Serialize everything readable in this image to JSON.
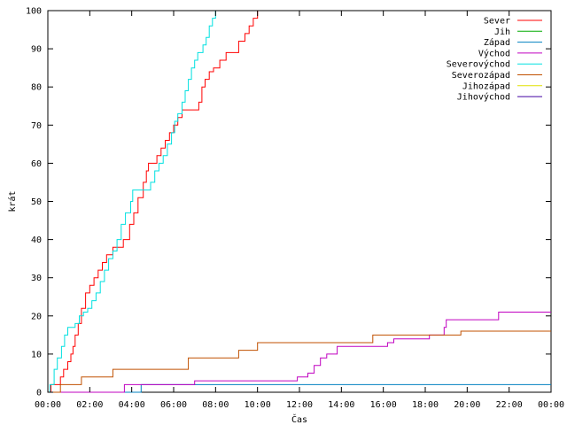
{
  "chart_data": {
    "type": "line",
    "title": "",
    "xlabel": "Čas",
    "ylabel": "krát",
    "ylim": [
      0,
      100
    ],
    "xlim": [
      0,
      24
    ],
    "x_unit": "hours since 00:00",
    "xticks": [
      0,
      2,
      4,
      6,
      8,
      10,
      12,
      14,
      16,
      18,
      20,
      22,
      24
    ],
    "xtick_labels": [
      "00:00",
      "02:00",
      "04:00",
      "06:00",
      "08:00",
      "10:00",
      "12:00",
      "14:00",
      "16:00",
      "18:00",
      "20:00",
      "22:00",
      "00:00"
    ],
    "yticks": [
      0,
      10,
      20,
      30,
      40,
      50,
      60,
      70,
      80,
      90,
      100
    ],
    "ytick_labels": [
      "0",
      "10",
      "20",
      "30",
      "40",
      "50",
      "60",
      "70",
      "80",
      "90",
      "100"
    ],
    "grid": false,
    "legend_position": "top-right",
    "series": [
      {
        "name": "Sever",
        "color": "#ff0000",
        "points": [
          [
            0,
            0
          ],
          [
            0.1,
            0
          ],
          [
            0.15,
            2
          ],
          [
            0.55,
            2
          ],
          [
            0.6,
            4
          ],
          [
            0.75,
            6
          ],
          [
            0.95,
            8
          ],
          [
            1.1,
            10
          ],
          [
            1.2,
            12
          ],
          [
            1.3,
            15
          ],
          [
            1.45,
            18
          ],
          [
            1.6,
            22
          ],
          [
            1.8,
            26
          ],
          [
            2.0,
            28
          ],
          [
            2.2,
            30
          ],
          [
            2.4,
            32
          ],
          [
            2.6,
            34
          ],
          [
            2.8,
            36
          ],
          [
            3.1,
            38
          ],
          [
            3.6,
            40
          ],
          [
            3.9,
            44
          ],
          [
            4.1,
            47
          ],
          [
            4.3,
            51
          ],
          [
            4.55,
            55
          ],
          [
            4.7,
            58
          ],
          [
            4.8,
            60
          ],
          [
            5.2,
            62
          ],
          [
            5.4,
            64
          ],
          [
            5.6,
            66
          ],
          [
            5.8,
            68
          ],
          [
            6.0,
            70
          ],
          [
            6.2,
            72
          ],
          [
            6.4,
            74
          ],
          [
            7.2,
            76
          ],
          [
            7.35,
            80
          ],
          [
            7.5,
            82
          ],
          [
            7.7,
            84
          ],
          [
            7.9,
            85
          ],
          [
            8.2,
            87
          ],
          [
            8.5,
            89
          ],
          [
            9.1,
            92
          ],
          [
            9.4,
            94
          ],
          [
            9.6,
            96
          ],
          [
            9.8,
            98
          ],
          [
            10.0,
            100
          ]
        ]
      },
      {
        "name": "Jih",
        "color": "#00aa00",
        "points": []
      },
      {
        "name": "Západ",
        "color": "#0080c0",
        "points": [
          [
            0,
            0
          ],
          [
            4.4,
            0
          ],
          [
            4.45,
            2
          ],
          [
            24,
            2
          ]
        ]
      },
      {
        "name": "Východ",
        "color": "#c000c0",
        "points": [
          [
            0,
            0
          ],
          [
            3.6,
            0
          ],
          [
            3.65,
            2
          ],
          [
            6.9,
            2
          ],
          [
            7.0,
            3
          ],
          [
            11.8,
            3
          ],
          [
            11.9,
            4
          ],
          [
            12.4,
            5
          ],
          [
            12.7,
            7
          ],
          [
            13.0,
            9
          ],
          [
            13.3,
            10
          ],
          [
            13.8,
            12
          ],
          [
            16.2,
            13
          ],
          [
            16.5,
            14
          ],
          [
            18.2,
            15
          ],
          [
            18.9,
            17
          ],
          [
            19.0,
            19
          ],
          [
            21.5,
            21
          ],
          [
            24,
            21
          ]
        ]
      },
      {
        "name": "Severovýchod",
        "color": "#00e0e0",
        "points": [
          [
            0,
            0
          ],
          [
            0.1,
            2
          ],
          [
            0.3,
            6
          ],
          [
            0.45,
            9
          ],
          [
            0.65,
            12
          ],
          [
            0.8,
            15
          ],
          [
            0.95,
            17
          ],
          [
            1.3,
            18
          ],
          [
            1.5,
            20
          ],
          [
            1.7,
            21
          ],
          [
            1.9,
            22
          ],
          [
            2.1,
            24
          ],
          [
            2.3,
            26
          ],
          [
            2.5,
            29
          ],
          [
            2.7,
            32
          ],
          [
            2.9,
            35
          ],
          [
            3.1,
            37
          ],
          [
            3.3,
            40
          ],
          [
            3.5,
            44
          ],
          [
            3.7,
            47
          ],
          [
            3.95,
            50
          ],
          [
            4.05,
            53
          ],
          [
            4.8,
            53
          ],
          [
            4.9,
            55
          ],
          [
            5.1,
            58
          ],
          [
            5.3,
            60
          ],
          [
            5.5,
            62
          ],
          [
            5.7,
            65
          ],
          [
            5.9,
            68
          ],
          [
            6.05,
            71
          ],
          [
            6.2,
            73
          ],
          [
            6.4,
            76
          ],
          [
            6.55,
            79
          ],
          [
            6.7,
            82
          ],
          [
            6.85,
            85
          ],
          [
            7.0,
            87
          ],
          [
            7.15,
            89
          ],
          [
            7.4,
            91
          ],
          [
            7.55,
            93
          ],
          [
            7.7,
            96
          ],
          [
            7.85,
            98
          ],
          [
            8.0,
            100
          ]
        ]
      },
      {
        "name": "Severozápad",
        "color": "#c05000",
        "points": [
          [
            0,
            0
          ],
          [
            0.5,
            0
          ],
          [
            0.6,
            2
          ],
          [
            1.5,
            2
          ],
          [
            1.6,
            4
          ],
          [
            3.0,
            4
          ],
          [
            3.1,
            6
          ],
          [
            6.6,
            6
          ],
          [
            6.7,
            9
          ],
          [
            9.0,
            9
          ],
          [
            9.1,
            11
          ],
          [
            9.9,
            11
          ],
          [
            10.0,
            13
          ],
          [
            15.4,
            13
          ],
          [
            15.5,
            15
          ],
          [
            19.6,
            15
          ],
          [
            19.7,
            16
          ],
          [
            24,
            16
          ]
        ]
      },
      {
        "name": "Jihozápad",
        "color": "#e0e000",
        "points": []
      },
      {
        "name": "Jihovýchod",
        "color": "#4000a0",
        "points": []
      }
    ]
  }
}
